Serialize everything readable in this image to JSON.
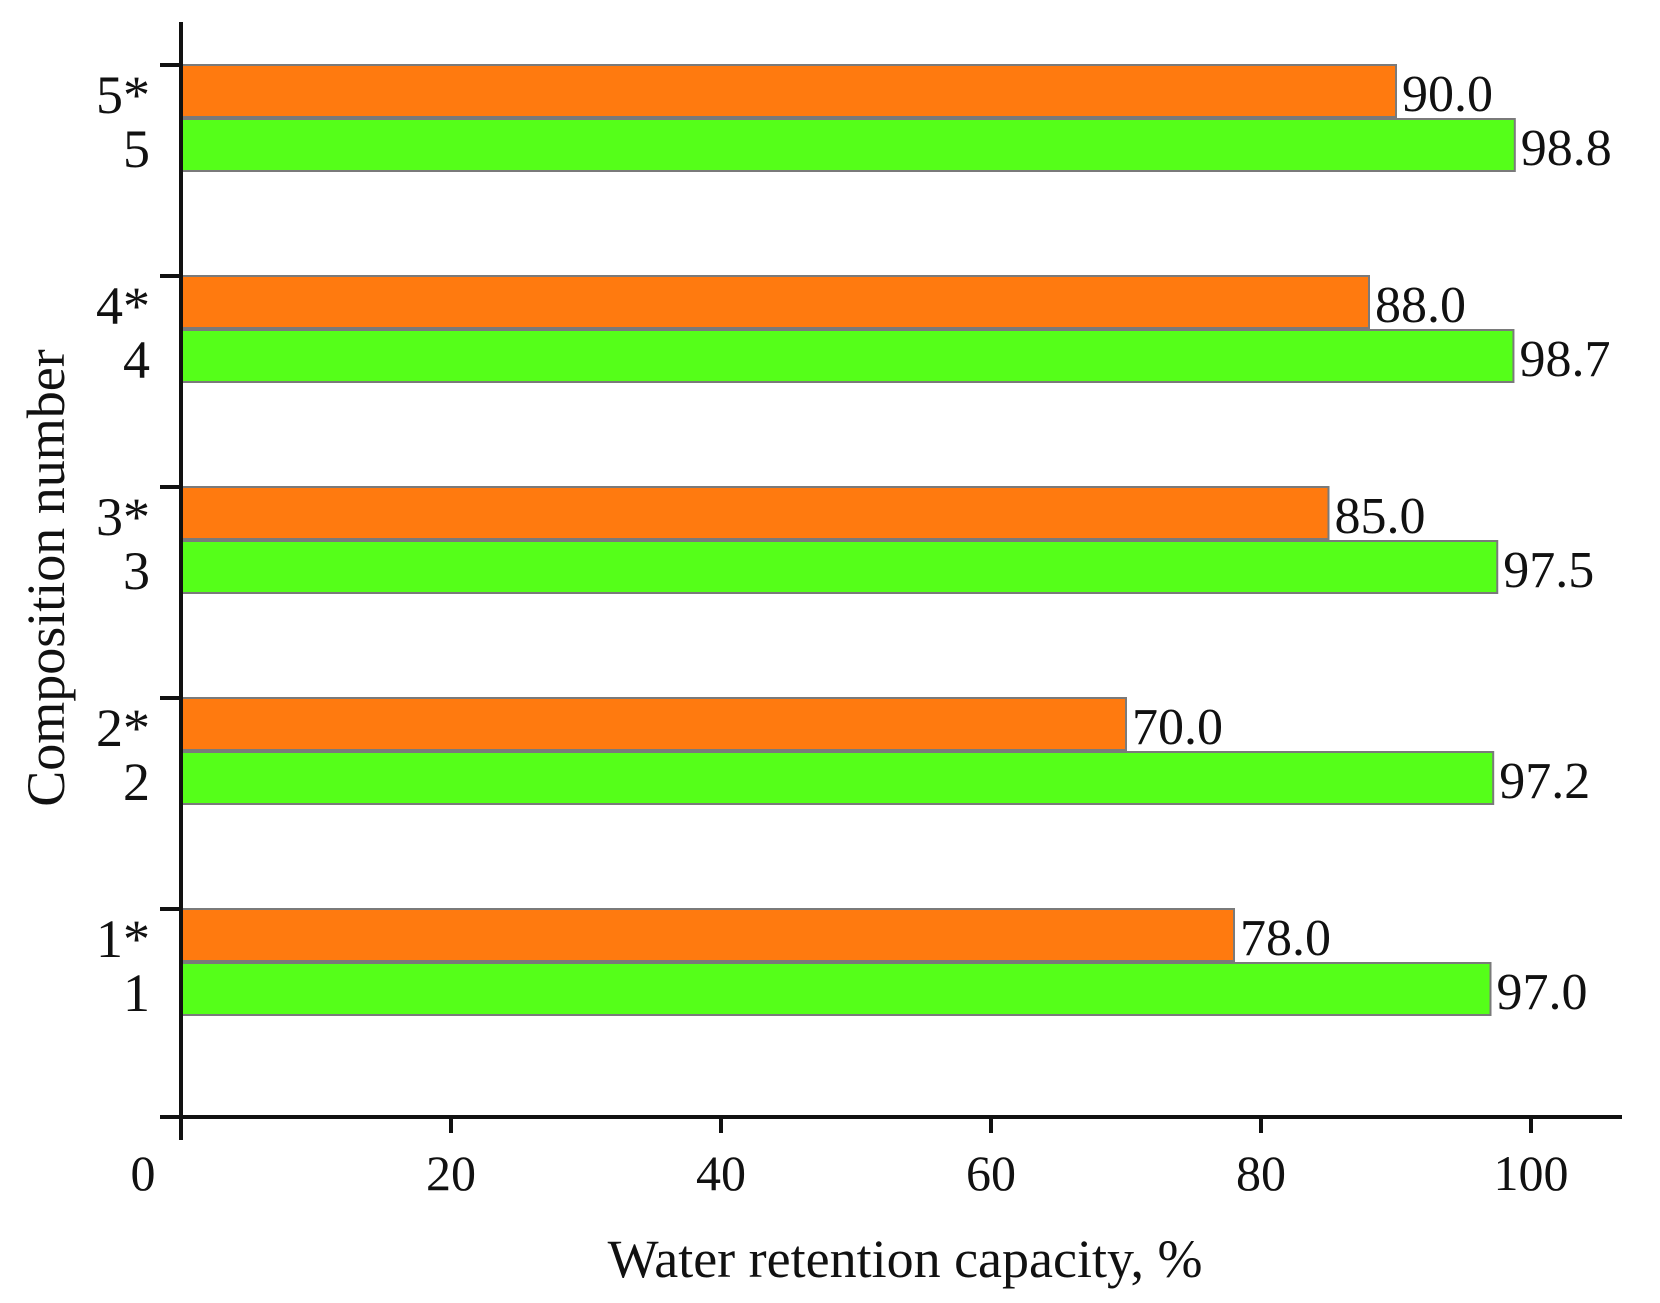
{
  "chart_data": {
    "type": "bar",
    "orientation": "horizontal",
    "title": "",
    "xlabel": "Water retention capacity, %",
    "ylabel": "Composition number",
    "xlim": [
      0,
      105
    ],
    "xticks": [
      0,
      20,
      40,
      60,
      80,
      100
    ],
    "xtick_labels": [
      "0",
      "20",
      "40",
      "60",
      "80",
      "100"
    ],
    "groups": [
      {
        "bars": [
          {
            "label": "1*",
            "value": 78.0,
            "value_label": "78.0",
            "color": "#ff7a0f"
          },
          {
            "label": "1",
            "value": 97.0,
            "value_label": "97.0",
            "color": "#55ff19"
          }
        ]
      },
      {
        "bars": [
          {
            "label": "2*",
            "value": 70.0,
            "value_label": "70.0",
            "color": "#ff7a0f"
          },
          {
            "label": "2",
            "value": 97.2,
            "value_label": "97.2",
            "color": "#55ff19"
          }
        ]
      },
      {
        "bars": [
          {
            "label": "3*",
            "value": 85.0,
            "value_label": "85.0",
            "color": "#ff7a0f"
          },
          {
            "label": "3",
            "value": 97.5,
            "value_label": "97.5",
            "color": "#55ff19"
          }
        ]
      },
      {
        "bars": [
          {
            "label": "4*",
            "value": 88.0,
            "value_label": "88.0",
            "color": "#ff7a0f"
          },
          {
            "label": "4",
            "value": 98.7,
            "value_label": "98.7",
            "color": "#55ff19"
          }
        ]
      },
      {
        "bars": [
          {
            "label": "5*",
            "value": 90.0,
            "value_label": "90.0",
            "color": "#ff7a0f"
          },
          {
            "label": "5",
            "value": 98.8,
            "value_label": "98.8",
            "color": "#55ff19"
          }
        ]
      }
    ],
    "grid": false,
    "legend": "none"
  }
}
